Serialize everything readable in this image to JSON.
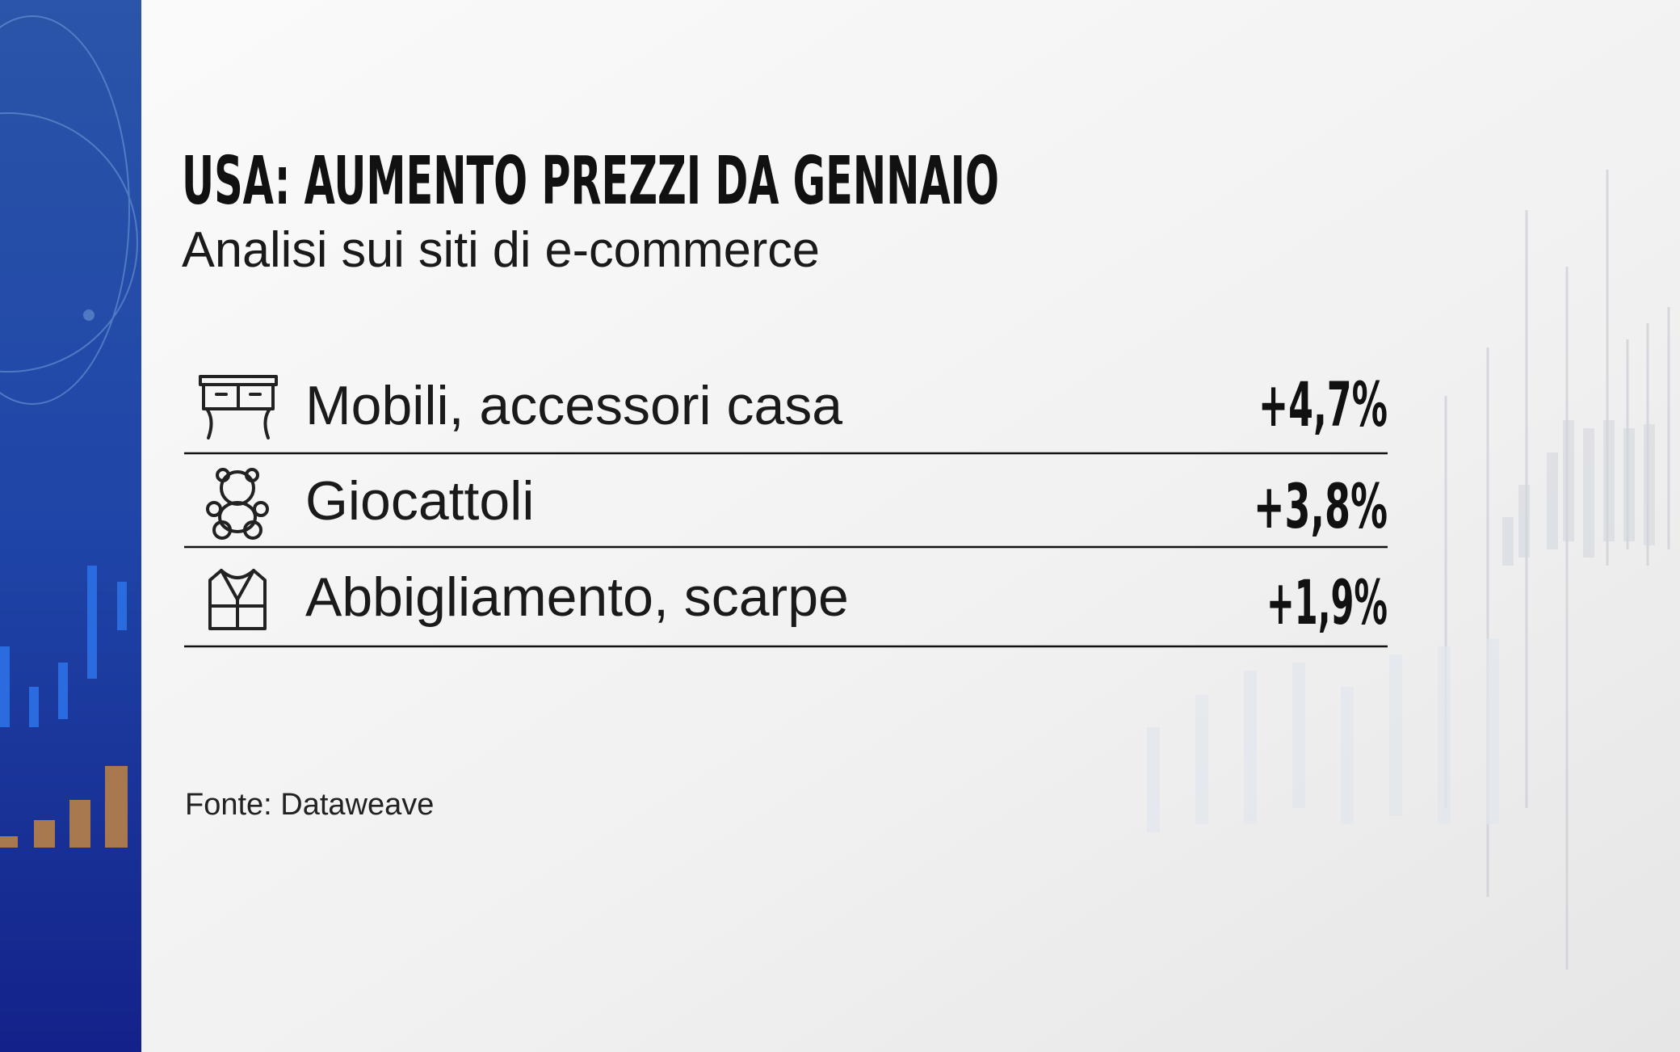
{
  "header": {
    "title": "USA: AUMENTO PREZZI DA GENNAIO",
    "subtitle": "Analisi sui siti di e-commerce"
  },
  "table": {
    "rows": [
      [
        "Mobili, accessori casa",
        "+4,7%"
      ],
      [
        "Giocattoli",
        "+3,8%"
      ],
      [
        "Abbigliamento, scarpe",
        "+1,9%"
      ]
    ]
  },
  "source": "Fonte: Dataweave"
}
